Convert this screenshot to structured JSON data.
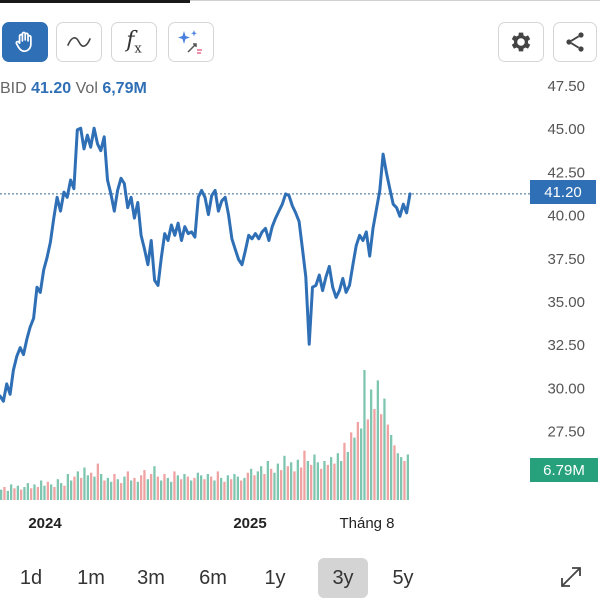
{
  "toolbar": {
    "buttons": [
      {
        "icon": "hand-pointer-icon",
        "active": true
      },
      {
        "icon": "line-draw-icon",
        "active": false
      },
      {
        "icon": "function-icon",
        "label": "f",
        "sub": "x",
        "active": false
      },
      {
        "icon": "magic-sparkle-icon",
        "active": false
      }
    ],
    "right_buttons": [
      {
        "icon": "gear-icon"
      },
      {
        "icon": "share-icon"
      }
    ]
  },
  "legend": {
    "symbol": "BID",
    "price": "41.20",
    "vol_label": "Vol",
    "vol_value": "6,79M"
  },
  "price_badge": "41.20",
  "volume_badge": "6.79M",
  "colors": {
    "line": "#2f6fb5",
    "badge_price": "#2f6fb5",
    "badge_volume": "#26a17c",
    "vol_up": "#7fc6b0",
    "vol_down": "#f0a3a3"
  },
  "chart_data": {
    "type": "line",
    "y_ticks": [
      "47.50",
      "45.00",
      "42.50",
      "40.00",
      "37.50",
      "35.00",
      "32.50",
      "30.00",
      "27.50"
    ],
    "ylim": [
      26,
      48.5
    ],
    "x_ticks": [
      "2024",
      "2025",
      "Tháng 8"
    ],
    "last_price": 41.2,
    "series": [
      {
        "values": [
          29.5,
          29.2,
          30.2,
          29.6,
          31.0,
          31.8,
          32.3,
          31.9,
          32.8,
          33.5,
          34.0,
          35.8,
          35.5,
          36.8,
          37.5,
          38.4,
          39.8,
          41.0,
          40.2,
          41.3,
          41.0,
          42.0,
          41.5,
          44.9,
          45.0,
          43.8,
          44.6,
          43.9,
          45.0,
          44.1,
          43.7,
          44.5,
          42.0,
          41.2,
          40.2,
          41.4,
          42.1,
          41.8,
          40.4,
          41.0,
          39.8,
          40.7,
          38.8,
          38.0,
          37.1,
          38.5,
          36.2,
          35.9,
          37.5,
          38.9,
          38.5,
          39.4,
          38.8,
          39.5,
          38.5,
          39.3,
          38.9,
          39.0,
          38.7,
          41.0,
          41.4,
          41.0,
          40.0,
          41.1,
          41.4,
          40.2,
          40.8,
          41.0,
          40.0,
          38.6,
          38.0,
          37.4,
          37.1,
          37.9,
          38.8,
          38.6,
          38.9,
          38.6,
          39.0,
          39.2,
          38.5,
          39.3,
          39.8,
          40.2,
          40.6,
          41.2,
          41.1,
          40.5,
          40.1,
          39.6,
          38.0,
          36.4,
          32.5,
          35.8,
          35.9,
          36.5,
          35.6,
          36.4,
          37.0,
          35.8,
          35.2,
          35.6,
          36.3,
          35.5,
          35.9,
          37.1,
          38.2,
          38.8,
          38.5,
          39.0,
          37.6,
          39.2,
          40.3,
          41.4,
          43.5,
          42.4,
          41.5,
          40.6,
          40.4,
          39.9,
          40.6,
          40.1,
          41.2
        ]
      }
    ],
    "volume": [
      0.08,
      0.1,
      0.07,
      0.12,
      0.09,
      0.11,
      0.08,
      0.1,
      0.13,
      0.09,
      0.12,
      0.1,
      0.15,
      0.11,
      0.14,
      0.12,
      0.1,
      0.16,
      0.13,
      0.11,
      0.2,
      0.15,
      0.18,
      0.22,
      0.17,
      0.25,
      0.19,
      0.21,
      0.18,
      0.28,
      0.2,
      0.15,
      0.17,
      0.14,
      0.2,
      0.16,
      0.13,
      0.18,
      0.22,
      0.15,
      0.17,
      0.14,
      0.19,
      0.23,
      0.16,
      0.2,
      0.26,
      0.18,
      0.15,
      0.2,
      0.17,
      0.14,
      0.22,
      0.19,
      0.16,
      0.2,
      0.18,
      0.15,
      0.17,
      0.21,
      0.19,
      0.16,
      0.2,
      0.18,
      0.15,
      0.22,
      0.17,
      0.14,
      0.19,
      0.16,
      0.2,
      0.18,
      0.15,
      0.17,
      0.21,
      0.24,
      0.19,
      0.22,
      0.26,
      0.2,
      0.3,
      0.24,
      0.21,
      0.28,
      0.23,
      0.34,
      0.26,
      0.29,
      0.22,
      0.31,
      0.25,
      0.38,
      0.3,
      0.27,
      0.35,
      0.29,
      0.24,
      0.3,
      0.27,
      0.33,
      0.28,
      0.36,
      0.3,
      0.44,
      0.37,
      0.52,
      0.48,
      0.6,
      0.55,
      1.0,
      0.62,
      0.85,
      0.7,
      0.92,
      0.66,
      0.78,
      0.58,
      0.5,
      0.42,
      0.36,
      0.33,
      0.3,
      0.35
    ],
    "volume_up": [
      true,
      false,
      true,
      true,
      false,
      true,
      false,
      true,
      true,
      false,
      true,
      false,
      true,
      true,
      false,
      true,
      false,
      true,
      true,
      false,
      true,
      true,
      false,
      true,
      false,
      true,
      true,
      false,
      true,
      false,
      true,
      false,
      true,
      true,
      false,
      true,
      false,
      true,
      false,
      true,
      false,
      true,
      false,
      false,
      true,
      false,
      true,
      false,
      true,
      false,
      true,
      true,
      false,
      true,
      false,
      true,
      false,
      true,
      false,
      true,
      true,
      false,
      true,
      false,
      true,
      false,
      true,
      false,
      true,
      false,
      true,
      true,
      false,
      true,
      false,
      true,
      false,
      true,
      true,
      false,
      true,
      false,
      true,
      true,
      false,
      true,
      false,
      true,
      false,
      true,
      false,
      false,
      true,
      false,
      true,
      true,
      false,
      true,
      false,
      true,
      false,
      true,
      true,
      false,
      true,
      false,
      true,
      false,
      true,
      true,
      false,
      true,
      false,
      true,
      false,
      true,
      false,
      true,
      false,
      true,
      true,
      false,
      true
    ]
  },
  "ranges": [
    {
      "label": "1d",
      "selected": false
    },
    {
      "label": "1m",
      "selected": false
    },
    {
      "label": "3m",
      "selected": false
    },
    {
      "label": "6m",
      "selected": false
    },
    {
      "label": "1y",
      "selected": false
    },
    {
      "label": "3y",
      "selected": true
    },
    {
      "label": "5y",
      "selected": false
    }
  ]
}
